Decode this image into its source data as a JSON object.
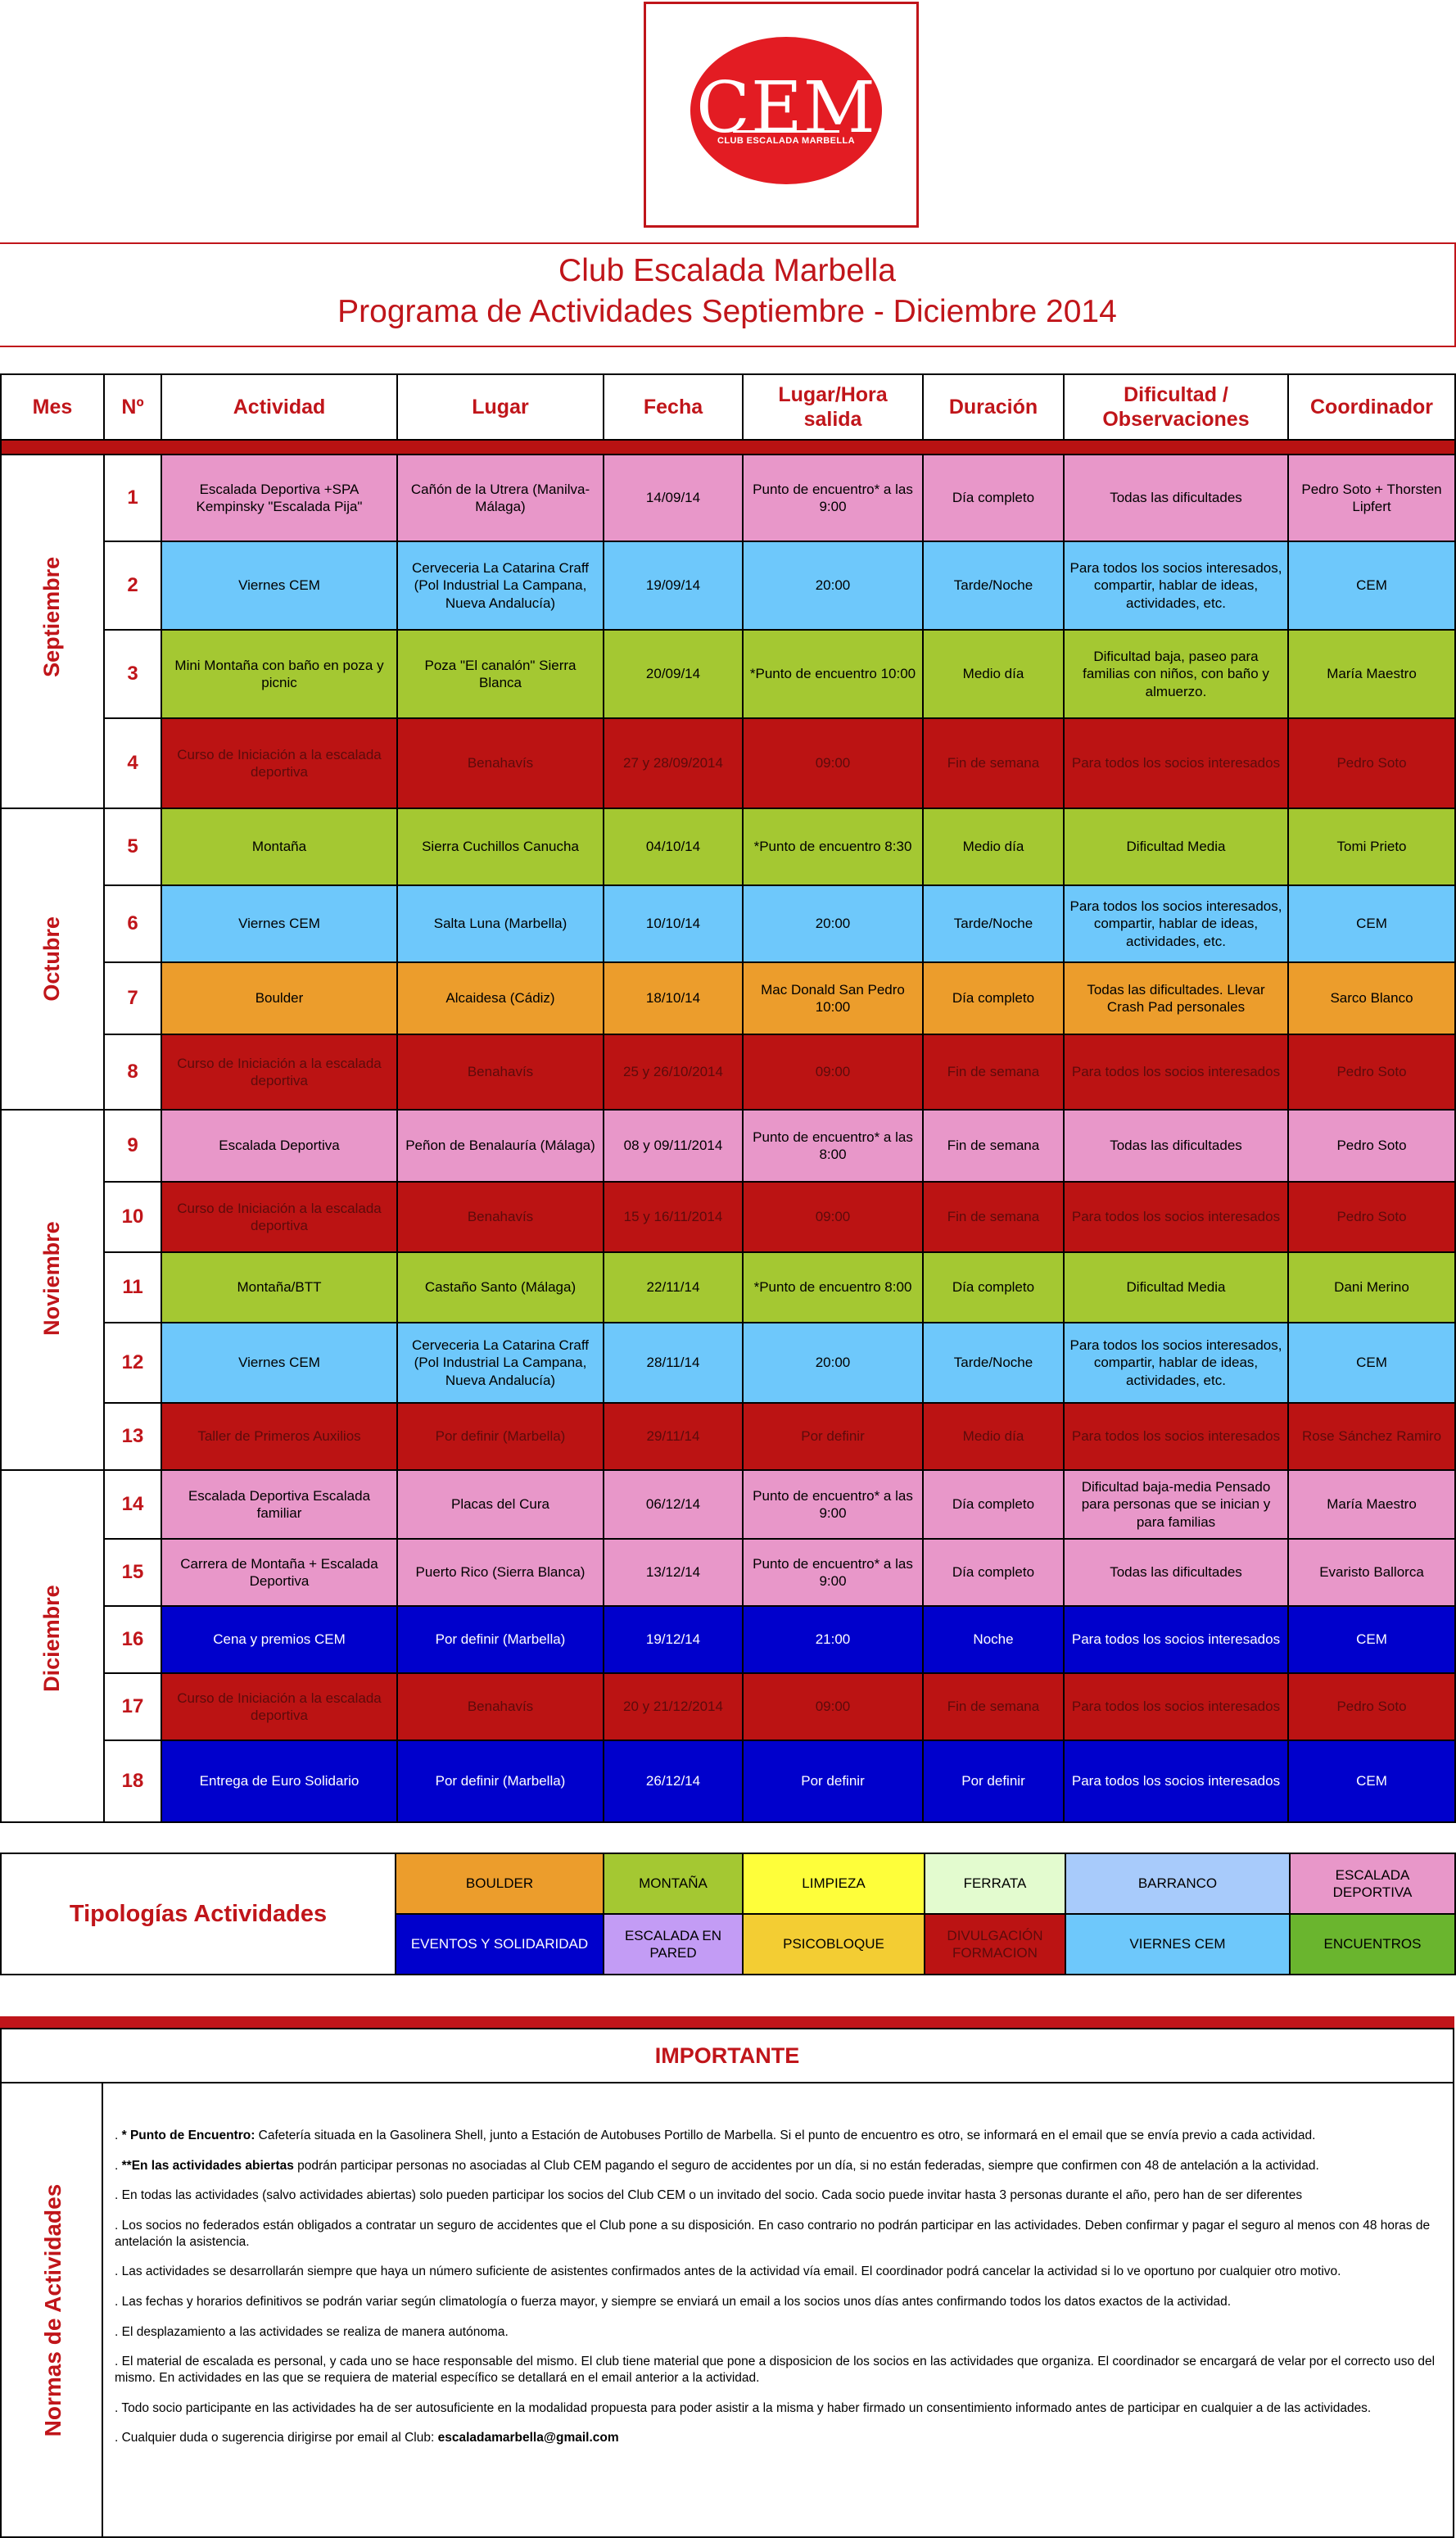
{
  "logo": {
    "text": "CEM",
    "subtitle": "CLUB ESCALADA MARBELLA"
  },
  "title": {
    "line1": "Club Escalada Marbella",
    "line2": "Programa de Actividades Septiembre - Diciembre 2014"
  },
  "table": {
    "headers": {
      "mes": "Mes",
      "num": "Nº",
      "actividad": "Actividad",
      "lugar": "Lugar",
      "fecha": "Fecha",
      "hora": "Lugar/Hora salida",
      "duracion": "Duración",
      "dificultad": "Dificultad / Observaciones",
      "coordinador": "Coordinador"
    },
    "months": [
      "Septiembre",
      "Octubre",
      "Noviembre",
      "Diciembre"
    ],
    "rows": [
      {
        "num": "1",
        "actividad": "Escalada Deportiva +SPA Kempinsky \"Escalada Pija\"",
        "lugar": "Cañón de la Utrera (Manilva-Málaga)",
        "fecha": "14/09/14",
        "hora": "Punto de encuentro* a las 9:00",
        "duracion": "Día completo",
        "dificultad": "Todas las dificultades",
        "coordinador": "Pedro Soto + Thorsten Lipfert",
        "color": "#e897c9"
      },
      {
        "num": "2",
        "actividad": "Viernes CEM",
        "lugar": "Cerveceria La Catarina Craff (Pol Industrial La Campana, Nueva Andalucía)",
        "fecha": "19/09/14",
        "hora": "20:00",
        "duracion": "Tarde/Noche",
        "dificultad": "Para todos los socios interesados, compartir, hablar de ideas, actividades, etc.",
        "coordinador": "CEM",
        "color": "#6ec8fb"
      },
      {
        "num": "3",
        "actividad": "Mini Montaña con baño en poza y picnic",
        "lugar": "Poza \"El canalón\" Sierra Blanca",
        "fecha": "20/09/14",
        "hora": "*Punto de encuentro 10:00",
        "duracion": "Medio día",
        "dificultad": "Dificultad baja, paseo para familias con niños, con baño y almuerzo.",
        "coordinador": "María Maestro",
        "color": "#a4c832"
      },
      {
        "num": "4",
        "actividad": "Curso de Iniciación a la escalada deportiva",
        "lugar": "Benahavís",
        "fecha": "27 y 28/09/2014",
        "hora": "09:00",
        "duracion": "Fin de semana",
        "dificultad": "Para todos los socios interesados",
        "coordinador": "Pedro Soto",
        "color": "#bb1313"
      },
      {
        "num": "5",
        "actividad": "Montaña",
        "lugar": "Sierra Cuchillos Canucha",
        "fecha": "04/10/14",
        "hora": "*Punto de encuentro 8:30",
        "duracion": "Medio día",
        "dificultad": "Dificultad Media",
        "coordinador": "Tomi Prieto",
        "color": "#a4c832"
      },
      {
        "num": "6",
        "actividad": "Viernes CEM",
        "lugar": "Salta Luna (Marbella)",
        "fecha": "10/10/14",
        "hora": "20:00",
        "duracion": "Tarde/Noche",
        "dificultad": "Para todos los socios interesados, compartir, hablar de ideas, actividades, etc.",
        "coordinador": "CEM",
        "color": "#6ec8fb"
      },
      {
        "num": "7",
        "actividad": "Boulder",
        "lugar": "Alcaidesa (Cádiz)",
        "fecha": "18/10/14",
        "hora": "Mac Donald San Pedro 10:00",
        "duracion": "Día completo",
        "dificultad": "Todas las dificultades. Llevar Crash Pad personales",
        "coordinador": "Sarco Blanco",
        "color": "#ec9d2c"
      },
      {
        "num": "8",
        "actividad": "Curso de Iniciación a la escalada deportiva",
        "lugar": "Benahavís",
        "fecha": "25 y 26/10/2014",
        "hora": "09:00",
        "duracion": "Fin de semana",
        "dificultad": "Para todos los socios interesados",
        "coordinador": "Pedro Soto",
        "color": "#bb1313"
      },
      {
        "num": "9",
        "actividad": "Escalada Deportiva",
        "lugar": "Peñon de Benalauría (Málaga)",
        "fecha": "08 y 09/11/2014",
        "hora": "Punto de encuentro* a las 8:00",
        "duracion": "Fin de semana",
        "dificultad": "Todas las dificultades",
        "coordinador": "Pedro Soto",
        "color": "#e897c9"
      },
      {
        "num": "10",
        "actividad": "Curso de Iniciación a la escalada deportiva",
        "lugar": "Benahavís",
        "fecha": "15 y 16/11/2014",
        "hora": "09:00",
        "duracion": "Fin de semana",
        "dificultad": "Para todos los socios interesados",
        "coordinador": "Pedro Soto",
        "color": "#bb1313"
      },
      {
        "num": "11",
        "actividad": "Montaña/BTT",
        "lugar": "Castaño Santo (Málaga)",
        "fecha": "22/11/14",
        "hora": "*Punto de encuentro 8:00",
        "duracion": "Día completo",
        "dificultad": "Dificultad Media",
        "coordinador": "Dani Merino",
        "color": "#a4c832"
      },
      {
        "num": "12",
        "actividad": "Viernes CEM",
        "lugar": "Cerveceria La Catarina Craff (Pol Industrial La Campana, Nueva Andalucía)",
        "fecha": "28/11/14",
        "hora": "20:00",
        "duracion": "Tarde/Noche",
        "dificultad": "Para todos los socios interesados, compartir, hablar de ideas, actividades, etc.",
        "coordinador": "CEM",
        "color": "#6ec8fb"
      },
      {
        "num": "13",
        "actividad": "Taller de Primeros Auxilios",
        "lugar": "Por definir (Marbella)",
        "fecha": "29/11/14",
        "hora": "Por definir",
        "duracion": "Medio día",
        "dificultad": "Para todos los socios interesados",
        "coordinador": "Rose Sánchez Ramiro",
        "color": "#bb1313"
      },
      {
        "num": "14",
        "actividad": "Escalada Deportiva Escalada familiar",
        "lugar": "Placas del Cura",
        "fecha": "06/12/14",
        "hora": "Punto de encuentro* a las 9:00",
        "duracion": "Día completo",
        "dificultad": "Dificultad baja-media Pensado para personas que se inician y para familias",
        "coordinador": "María Maestro",
        "color": "#e897c9"
      },
      {
        "num": "15",
        "actividad": "Carrera de Montaña + Escalada Deportiva",
        "lugar": "Puerto Rico (Sierra Blanca)",
        "fecha": "13/12/14",
        "hora": "Punto de encuentro* a las 9:00",
        "duracion": "Día completo",
        "dificultad": "Todas las dificultades",
        "coordinador": "Evaristo Ballorca",
        "color": "#e897c9"
      },
      {
        "num": "16",
        "actividad": "Cena y premios CEM",
        "lugar": "Por definir (Marbella)",
        "fecha": "19/12/14",
        "hora": "21:00",
        "duracion": "Noche",
        "dificultad": "Para todos los socios interesados",
        "coordinador": "CEM",
        "color": "#0000cc"
      },
      {
        "num": "17",
        "actividad": "Curso de Iniciación a la escalada deportiva",
        "lugar": "Benahavís",
        "fecha": "20 y 21/12/2014",
        "hora": "09:00",
        "duracion": "Fin de semana",
        "dificultad": "Para todos los socios interesados",
        "coordinador": "Pedro Soto",
        "color": "#bb1313"
      },
      {
        "num": "18",
        "actividad": "Entrega de Euro Solidario",
        "lugar": "Por definir (Marbella)",
        "fecha": "26/12/14",
        "hora": "Por definir",
        "duracion": "Por definir",
        "dificultad": "Para todos los socios interesados",
        "coordinador": "CEM",
        "color": "#0000cc"
      }
    ]
  },
  "legend": {
    "title": "Tipologías Actividades",
    "row1": [
      {
        "label": "BOULDER",
        "color": "#ec9d2c"
      },
      {
        "label": "MONTAÑA",
        "color": "#a4c832"
      },
      {
        "label": "LIMPIEZA",
        "color": "#fefe3a"
      },
      {
        "label": "FERRATA",
        "color": "#e3fbcf"
      },
      {
        "label": "BARRANCO",
        "color": "#a8cbfb"
      },
      {
        "label": "ESCALADA DEPORTIVA",
        "color": "#e897c9"
      }
    ],
    "row2": [
      {
        "label": "EVENTOS Y SOLIDARIDAD",
        "color": "#0000cc"
      },
      {
        "label": "ESCALADA EN PARED",
        "color": "#c39cf5"
      },
      {
        "label": "PSICOBLOQUE",
        "color": "#f3cd33"
      },
      {
        "label": "DIVULGACIÓN FORMACION",
        "color": "#bb1313"
      },
      {
        "label": "VIERNES CEM",
        "color": "#6ec8fb"
      },
      {
        "label": "ENCUENTROS",
        "color": "#6ab52e"
      }
    ]
  },
  "importante": {
    "heading": "IMPORTANTE",
    "side_label": "Normas de Actividades",
    "rule1_bold": "* Punto de Encuentro:",
    "rule1": " Cafetería situada en la Gasolinera Shell, junto a Estación de Autobuses Portillo de Marbella. Si el punto de encuentro es otro, se informará en el email que se envía previo a cada actividad.",
    "rule2_bold": "**En las actividades abiertas",
    "rule2": " podrán participar personas no asociadas al Club CEM pagando el seguro de accidentes por un día, si no están federadas, siempre que confirmen con 48 de antelación a la actividad.",
    "rule3": ". En todas las actividades (salvo actividades abiertas) solo pueden participar los socios del Club CEM o un invitado del socio. Cada socio puede invitar hasta 3 personas durante el año, pero han de ser diferentes",
    "rule4": ". Los socios no federados están obligados a contratar un seguro de accidentes que el Club pone a su disposición. En caso contrario no podrán participar en las actividades. Deben confirmar y pagar el seguro al menos con 48 horas de antelación la asistencia.",
    "rule5": ". Las actividades se desarrollarán siempre que haya un número suficiente de asistentes confirmados antes de la actividad vía email. El coordinador podrá cancelar la actividad si lo ve oportuno por cualquier otro motivo.",
    "rule6": ". Las fechas y horarios definitivos se podrán variar según climatología o fuerza mayor, y siempre se enviará un email a los socios unos días antes confirmando todos los datos exactos de la actividad.",
    "rule7": ". El desplazamiento a las actividades se realiza de manera autónoma.",
    "rule8": ". El material de escalada es personal, y cada uno se hace responsable del mismo. El club tiene material que pone a disposicion de los socios en las actividades que organiza. El coordinador se encargará de velar por el correcto uso del mismo. En actividades en las que se requiera de material específico se detallará en el email anterior a la actividad.",
    "rule9": ". Todo socio participante en las actividades ha de ser autosuficiente en la modalidad propuesta para poder asistir a la misma y haber firmado un consentimiento informado antes de participar en cualquier a de las actividades.",
    "rule10": ". Cualquier duda o sugerencia dirigirse por email al Club: ",
    "rule10_bold": "escaladamarbella@gmail.com"
  }
}
